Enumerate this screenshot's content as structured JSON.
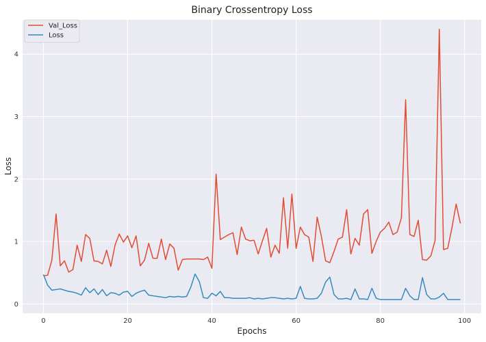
{
  "chart_data": {
    "type": "line",
    "title": "Binary Crossentropy Loss",
    "xlabel": "Epochs",
    "ylabel": "Loss",
    "xlim": [
      -4.95,
      103.95
    ],
    "ylim": [
      -0.15,
      4.55
    ],
    "xticks": [
      0,
      20,
      40,
      60,
      80,
      100
    ],
    "yticks": [
      0,
      1,
      2,
      3,
      4
    ],
    "grid": true,
    "legend_position": "top-left",
    "series": [
      {
        "name": "Val_Loss",
        "color": "#e24a33",
        "values": [
          0.45,
          0.46,
          0.7,
          1.44,
          0.61,
          0.69,
          0.51,
          0.55,
          0.94,
          0.68,
          1.11,
          1.05,
          0.69,
          0.68,
          0.64,
          0.86,
          0.6,
          0.94,
          1.12,
          0.99,
          1.09,
          0.9,
          1.09,
          0.61,
          0.7,
          0.97,
          0.73,
          0.73,
          1.04,
          0.71,
          0.96,
          0.89,
          0.54,
          0.71,
          0.72,
          0.72,
          0.72,
          0.72,
          0.71,
          0.75,
          0.57,
          2.08,
          1.03,
          1.07,
          1.11,
          1.14,
          0.79,
          1.23,
          1.04,
          1.01,
          1.02,
          0.8,
          1.01,
          1.21,
          0.75,
          0.94,
          0.81,
          1.7,
          0.89,
          1.76,
          0.89,
          1.23,
          1.11,
          1.07,
          0.68,
          1.39,
          1.08,
          0.69,
          0.66,
          0.84,
          1.04,
          1.07,
          1.51,
          0.8,
          1.05,
          0.94,
          1.44,
          1.51,
          0.81,
          1.0,
          1.15,
          1.21,
          1.31,
          1.11,
          1.15,
          1.38,
          3.27,
          1.11,
          1.08,
          1.34,
          0.71,
          0.7,
          0.77,
          1.02,
          4.4,
          0.87,
          0.89,
          1.22,
          1.6,
          1.29
        ]
      },
      {
        "name": "Loss",
        "color": "#348abd",
        "values": [
          0.47,
          0.3,
          0.22,
          0.23,
          0.24,
          0.22,
          0.2,
          0.19,
          0.17,
          0.14,
          0.26,
          0.18,
          0.24,
          0.15,
          0.23,
          0.13,
          0.18,
          0.17,
          0.14,
          0.19,
          0.2,
          0.12,
          0.17,
          0.2,
          0.22,
          0.14,
          0.13,
          0.12,
          0.11,
          0.1,
          0.12,
          0.11,
          0.12,
          0.11,
          0.12,
          0.27,
          0.48,
          0.36,
          0.1,
          0.09,
          0.17,
          0.13,
          0.2,
          0.1,
          0.1,
          0.09,
          0.09,
          0.09,
          0.09,
          0.1,
          0.08,
          0.09,
          0.08,
          0.09,
          0.1,
          0.1,
          0.09,
          0.08,
          0.09,
          0.08,
          0.09,
          0.28,
          0.09,
          0.08,
          0.08,
          0.09,
          0.17,
          0.35,
          0.43,
          0.15,
          0.08,
          0.08,
          0.09,
          0.07,
          0.24,
          0.08,
          0.08,
          0.07,
          0.25,
          0.09,
          0.07,
          0.07,
          0.07,
          0.07,
          0.07,
          0.07,
          0.25,
          0.13,
          0.07,
          0.07,
          0.42,
          0.15,
          0.08,
          0.08,
          0.11,
          0.17,
          0.07,
          0.07,
          0.07,
          0.07
        ]
      }
    ]
  }
}
